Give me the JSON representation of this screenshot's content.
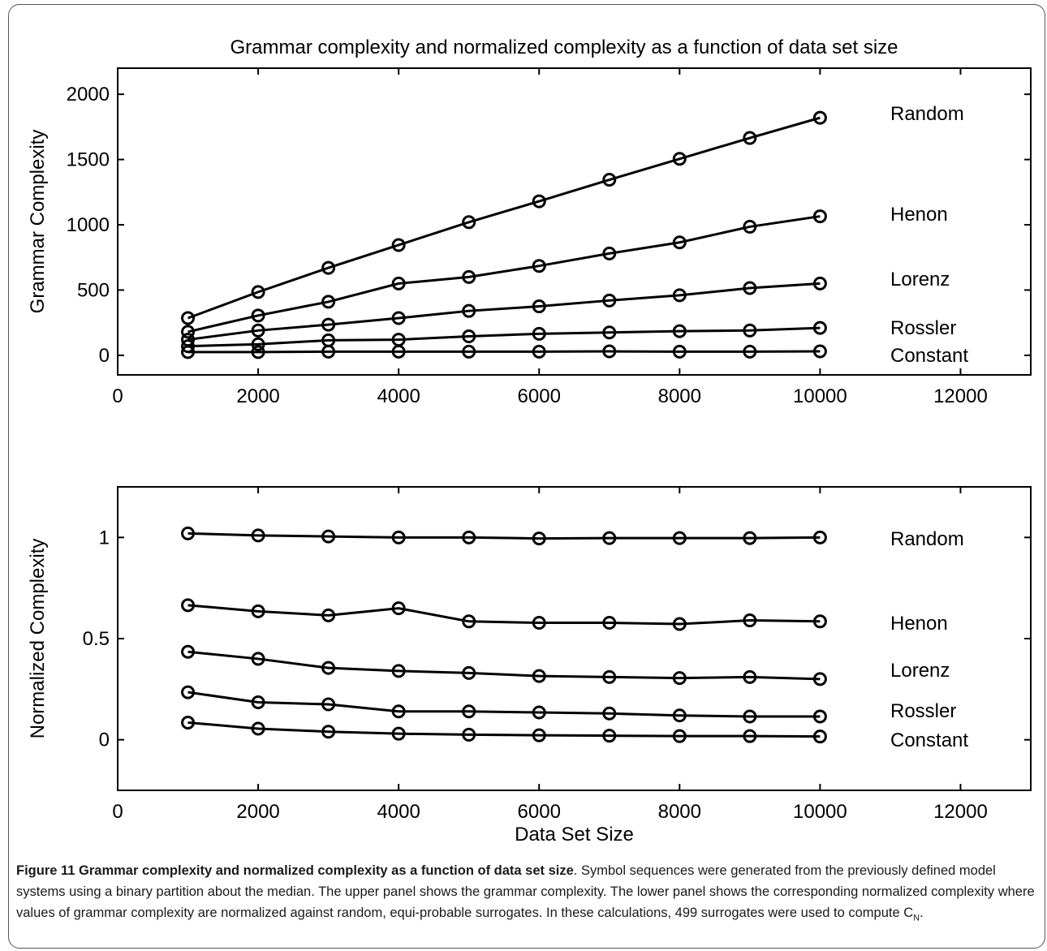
{
  "figure": {
    "title": "Grammar complexity and normalized complexity as a function of data set size"
  },
  "chart_data": [
    {
      "type": "line",
      "title": "Grammar complexity and normalized complexity as a function of data set size",
      "xlabel": "",
      "ylabel": "Grammar Complexity",
      "xlim": [
        0,
        13000
      ],
      "ylim": [
        -150,
        2200
      ],
      "xticks": [
        0,
        2000,
        4000,
        6000,
        8000,
        10000,
        12000
      ],
      "yticks": [
        0,
        500,
        1000,
        1500,
        2000
      ],
      "grid": false,
      "x": [
        1000,
        2000,
        3000,
        4000,
        5000,
        6000,
        7000,
        8000,
        9000,
        10000
      ],
      "series": [
        {
          "name": "Random",
          "values": [
            285,
            485,
            670,
            845,
            1020,
            1180,
            1345,
            1505,
            1665,
            1820
          ]
        },
        {
          "name": "Henon",
          "values": [
            180,
            305,
            410,
            550,
            600,
            685,
            780,
            865,
            985,
            1065
          ]
        },
        {
          "name": "Lorenz",
          "values": [
            120,
            190,
            235,
            285,
            340,
            375,
            420,
            460,
            515,
            550
          ]
        },
        {
          "name": "Rossler",
          "values": [
            70,
            85,
            115,
            120,
            145,
            165,
            175,
            185,
            190,
            210
          ]
        },
        {
          "name": "Constant",
          "values": [
            25,
            25,
            28,
            28,
            28,
            28,
            30,
            28,
            28,
            30
          ]
        }
      ]
    },
    {
      "type": "line",
      "title": "",
      "xlabel": "Data Set Size",
      "ylabel": "Normalized Complexity",
      "xlim": [
        0,
        13000
      ],
      "ylim": [
        -0.25,
        1.25
      ],
      "xticks": [
        0,
        2000,
        4000,
        6000,
        8000,
        10000,
        12000
      ],
      "yticks": [
        0,
        0.5,
        1
      ],
      "grid": false,
      "x": [
        1000,
        2000,
        3000,
        4000,
        5000,
        6000,
        7000,
        8000,
        9000,
        10000
      ],
      "series": [
        {
          "name": "Random",
          "values": [
            1.02,
            1.01,
            1.005,
            1.0,
            1.0,
            0.995,
            0.997,
            0.997,
            0.997,
            1.0
          ]
        },
        {
          "name": "Henon",
          "values": [
            0.665,
            0.635,
            0.615,
            0.65,
            0.585,
            0.578,
            0.578,
            0.572,
            0.59,
            0.585
          ]
        },
        {
          "name": "Lorenz",
          "values": [
            0.435,
            0.4,
            0.355,
            0.34,
            0.33,
            0.315,
            0.31,
            0.305,
            0.31,
            0.3
          ]
        },
        {
          "name": "Rossler",
          "values": [
            0.235,
            0.185,
            0.175,
            0.14,
            0.14,
            0.135,
            0.13,
            0.12,
            0.115,
            0.115
          ]
        },
        {
          "name": "Constant",
          "values": [
            0.085,
            0.055,
            0.04,
            0.03,
            0.025,
            0.022,
            0.02,
            0.018,
            0.018,
            0.016
          ]
        }
      ]
    }
  ],
  "caption": {
    "label": "Figure 11 Grammar complexity and normalized complexity as a function of data set size",
    "text": ". Symbol sequences were generated from the previously defined model systems using a binary partition about the median. The upper panel shows the grammar complexity. The lower panel shows the corresponding normalized complexity where values of grammar complexity are normalized against random, equi-probable surrogates. In these calculations, 499 surrogates were used to compute C",
    "subscript": "N",
    "end": "."
  },
  "colors": {
    "line": "#000000",
    "frame": "#555555"
  }
}
